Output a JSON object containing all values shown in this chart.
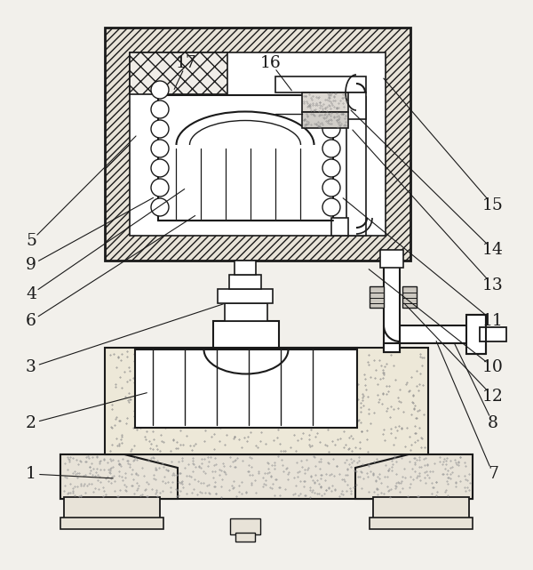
{
  "bg_color": "#f2f0eb",
  "line_color": "#1a1a1a",
  "hatch_fc": "#e8e3d8",
  "stipple_fc": "#ede8d8",
  "figsize": [
    6.0,
    6.41
  ],
  "dpi": 100
}
